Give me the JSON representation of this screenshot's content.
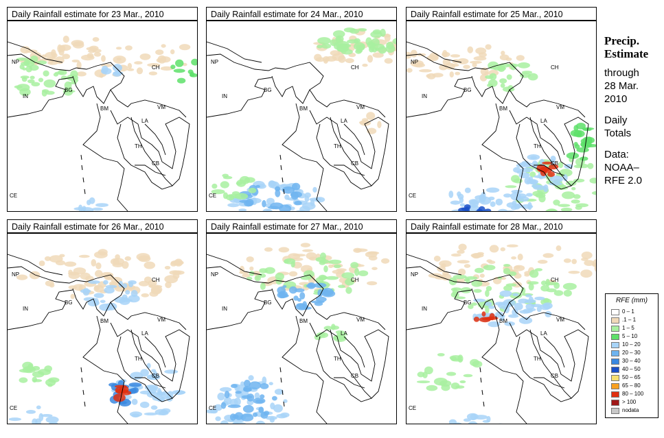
{
  "panels": [
    {
      "title": "Daily Rainfall estimate for  23 Mar., 2010"
    },
    {
      "title": "Daily Rainfall estimate for  24 Mar., 2010"
    },
    {
      "title": "Daily Rainfall estimate for  25 Mar., 2010"
    },
    {
      "title": "Daily Rainfall estimate for  26 Mar., 2010"
    },
    {
      "title": "Daily Rainfall estimate for  27 Mar., 2010"
    },
    {
      "title": "Daily Rainfall estimate for  28 Mar., 2010"
    }
  ],
  "map_labels": {
    "np": "NP",
    "in": "IN",
    "bg": "BG",
    "bm": "BM",
    "ch": "CH",
    "vm": "VM",
    "la": "LA",
    "th": "TH",
    "cb": "CB",
    "ce": "CE"
  },
  "side": {
    "title1": "Precip.",
    "title2": "Estimate",
    "through": "through",
    "date1": "28 Mar.",
    "date2": "2010",
    "daily1": "Daily",
    "daily2": "Totals",
    "data1": "Data:",
    "data2": "NOAA–",
    "data3": "RFE 2.0"
  },
  "legend": {
    "title": "RFE (mm)",
    "items": [
      {
        "label": "0 – 1",
        "color": "#ffffff"
      },
      {
        "label": ".1 – 1",
        "color": "#f0d9b8"
      },
      {
        "label": "1 – 5",
        "color": "#a8f0a0"
      },
      {
        "label": "5 – 10",
        "color": "#5ee06a"
      },
      {
        "label": "10 – 20",
        "color": "#a8d4f8"
      },
      {
        "label": "20 – 30",
        "color": "#6eb4f0"
      },
      {
        "label": "30 – 40",
        "color": "#3a88e0"
      },
      {
        "label": "40 – 50",
        "color": "#1a50c8"
      },
      {
        "label": "50 – 65",
        "color": "#f8e070"
      },
      {
        "label": "65 – 80",
        "color": "#f8a020"
      },
      {
        "label": "80 – 100",
        "color": "#e03010"
      },
      {
        "label": "> 100",
        "color": "#a01818"
      },
      {
        "label": "nodata",
        "color": "#c8c8c8"
      }
    ]
  }
}
